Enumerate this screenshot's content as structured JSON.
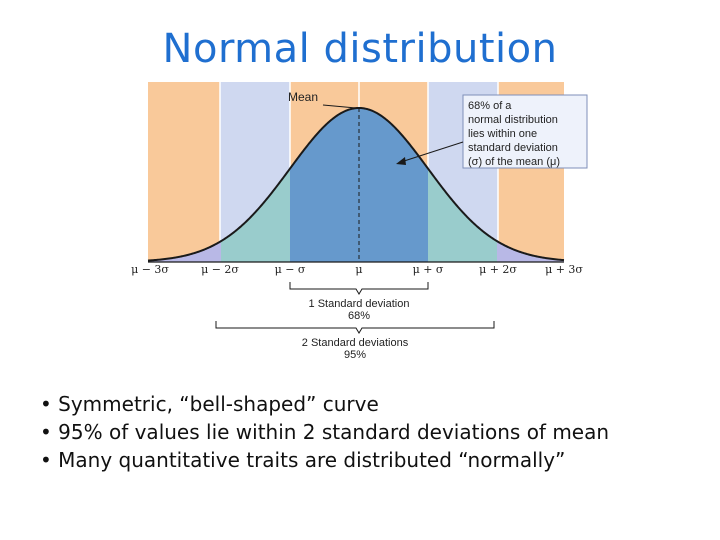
{
  "title": "Normal distribution",
  "diagram": {
    "mean_label": "Mean",
    "callout_lines": [
      "68% of a",
      "normal distribution",
      "lies within one",
      "standard deviation",
      "(σ) of the mean (μ)"
    ],
    "tick_labels": [
      "μ − 3σ",
      "μ − 2σ",
      "μ − σ",
      "μ",
      "μ + σ",
      "μ + 2σ",
      "μ + 3σ"
    ],
    "bracket_1": {
      "label": "1 Standard deviation",
      "percent": "68%"
    },
    "bracket_2": {
      "label": "2 Standard deviations",
      "percent": "95%"
    },
    "colors": {
      "outer_band": "#f9c99a",
      "middle_band": "#cfd8f0",
      "center_fill": "#6699cc",
      "mid_fill": "#99cccc",
      "tail_fill": "#b8b8e6",
      "curve": "#1a1a1a"
    }
  },
  "bullets": [
    "• Symmetric, “bell-shaped” curve",
    "• 95% of values lie within 2 standard deviations of mean",
    "• Many quantitative traits are distributed “normally”"
  ]
}
